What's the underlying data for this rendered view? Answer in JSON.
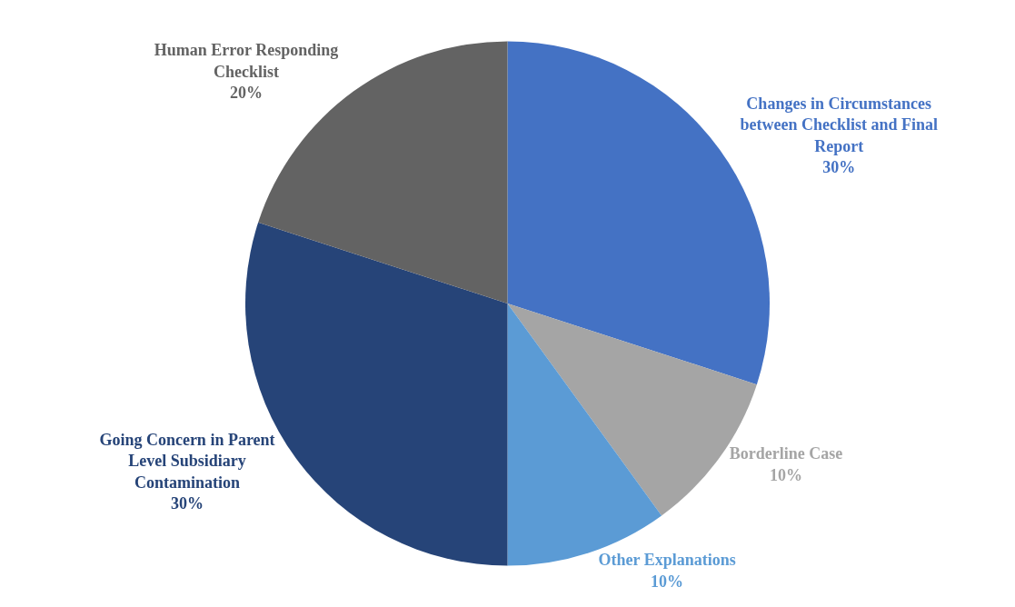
{
  "chart_data": {
    "type": "pie",
    "categories": [
      "Changes in Circumstances between Checklist and Final Report",
      "Borderline Case",
      "Other Explanations",
      "Going Concern in Parent Level Subsidiary Contamination",
      "Human Error Responding Checklist"
    ],
    "values": [
      30,
      10,
      10,
      30,
      20
    ],
    "value_labels": [
      "30%",
      "10%",
      "10%",
      "30%",
      "20%"
    ],
    "colors": [
      "#4472c4",
      "#a5a5a5",
      "#5b9bd5",
      "#264478",
      "#636363"
    ],
    "legend": false
  }
}
